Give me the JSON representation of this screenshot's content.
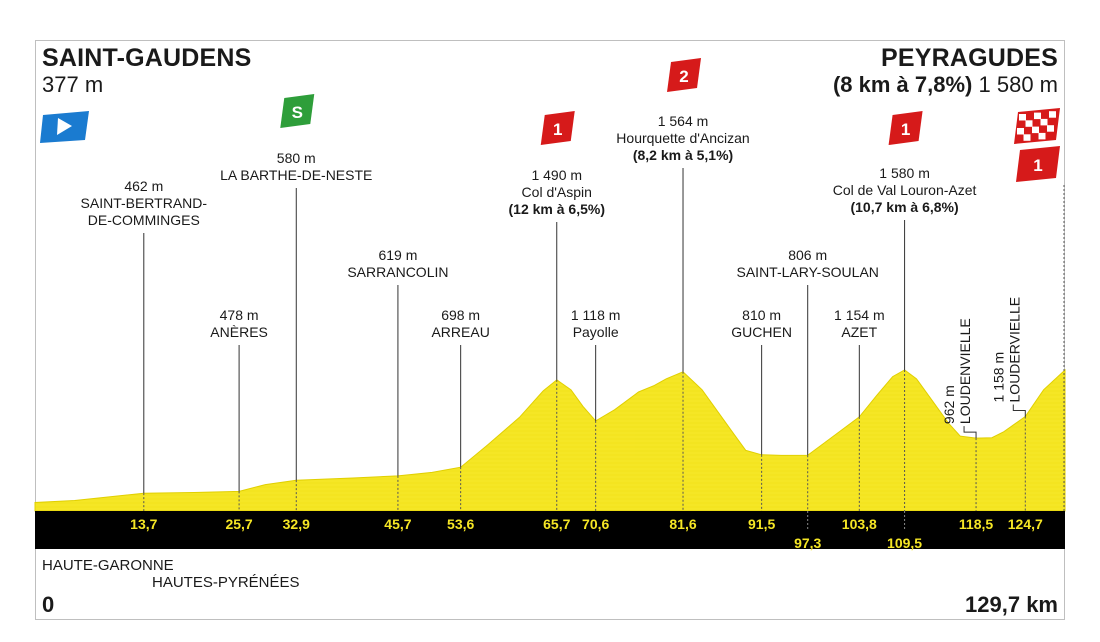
{
  "start": {
    "name": "SAINT-GAUDENS",
    "altitude": "377 m",
    "km": "0"
  },
  "finish": {
    "name": "PEYRAGUDES",
    "climb": "(8 km à 7,8%)",
    "altitude": "1 580 m",
    "km": "129,7 km"
  },
  "departments": [
    "HAUTE-GARONNE",
    "HAUTES-PYRÉNÉES"
  ],
  "colors": {
    "profile": "#f5e625",
    "profile_edge": "#e0cf00",
    "bar": "#000000",
    "km_text": "#f5e625",
    "sprint": "#2e9e3a",
    "climb": "#d61a1a",
    "start_flag": "#1a7bd0"
  },
  "profile_points": [
    {
      "km": 0,
      "alt": 377
    },
    {
      "km": 5,
      "alt": 395
    },
    {
      "km": 13.7,
      "alt": 462
    },
    {
      "km": 20,
      "alt": 468
    },
    {
      "km": 25.7,
      "alt": 478
    },
    {
      "km": 29,
      "alt": 540
    },
    {
      "km": 32.9,
      "alt": 580
    },
    {
      "km": 40,
      "alt": 600
    },
    {
      "km": 45.7,
      "alt": 619
    },
    {
      "km": 50,
      "alt": 650
    },
    {
      "km": 53.6,
      "alt": 698
    },
    {
      "km": 57,
      "alt": 900
    },
    {
      "km": 61,
      "alt": 1150
    },
    {
      "km": 64,
      "alt": 1390
    },
    {
      "km": 65.7,
      "alt": 1490
    },
    {
      "km": 67.5,
      "alt": 1400
    },
    {
      "km": 69,
      "alt": 1250
    },
    {
      "km": 70.6,
      "alt": 1118
    },
    {
      "km": 73,
      "alt": 1220
    },
    {
      "km": 76,
      "alt": 1380
    },
    {
      "km": 78,
      "alt": 1440
    },
    {
      "km": 79.5,
      "alt": 1500
    },
    {
      "km": 81.6,
      "alt": 1564
    },
    {
      "km": 84,
      "alt": 1400
    },
    {
      "km": 86,
      "alt": 1200
    },
    {
      "km": 88,
      "alt": 1000
    },
    {
      "km": 89.5,
      "alt": 850
    },
    {
      "km": 91.5,
      "alt": 810
    },
    {
      "km": 94,
      "alt": 805
    },
    {
      "km": 97.3,
      "alt": 806
    },
    {
      "km": 100,
      "alt": 950
    },
    {
      "km": 103.8,
      "alt": 1154
    },
    {
      "km": 106,
      "alt": 1350
    },
    {
      "km": 108,
      "alt": 1520
    },
    {
      "km": 109.5,
      "alt": 1580
    },
    {
      "km": 111,
      "alt": 1500
    },
    {
      "km": 113,
      "alt": 1300
    },
    {
      "km": 115,
      "alt": 1100
    },
    {
      "km": 116.5,
      "alt": 980
    },
    {
      "km": 118.5,
      "alt": 962
    },
    {
      "km": 120.5,
      "alt": 965
    },
    {
      "km": 122,
      "alt": 1020
    },
    {
      "km": 124.7,
      "alt": 1158
    },
    {
      "km": 127,
      "alt": 1400
    },
    {
      "km": 129.7,
      "alt": 1580
    }
  ],
  "km_markers": [
    {
      "km": 13.7,
      "label": "13,7",
      "row": 1
    },
    {
      "km": 25.7,
      "label": "25,7",
      "row": 1
    },
    {
      "km": 32.9,
      "label": "32,9",
      "row": 1
    },
    {
      "km": 45.7,
      "label": "45,7",
      "row": 1
    },
    {
      "km": 53.6,
      "label": "53,6",
      "row": 1
    },
    {
      "km": 65.7,
      "label": "65,7",
      "row": 1
    },
    {
      "km": 70.6,
      "label": "70,6",
      "row": 1
    },
    {
      "km": 81.6,
      "label": "81,6",
      "row": 1
    },
    {
      "km": 91.5,
      "label": "91,5",
      "row": 1
    },
    {
      "km": 97.3,
      "label": "97,3",
      "row": 2
    },
    {
      "km": 103.8,
      "label": "103,8",
      "row": 1
    },
    {
      "km": 109.5,
      "label": "109,5",
      "row": 2
    },
    {
      "km": 118.5,
      "label": "118,5",
      "row": 1
    },
    {
      "km": 124.7,
      "label": "124,7",
      "row": 1
    }
  ],
  "places": [
    {
      "km": 13.7,
      "alt_label": "462 m",
      "lines": [
        "SAINT-BERTRAND-",
        "DE-COMMINGES"
      ]
    },
    {
      "km": 25.7,
      "alt_label": "478 m",
      "lines": [
        "ANÈRES"
      ]
    },
    {
      "km": 32.9,
      "alt_label": "580 m",
      "lines": [
        "LA BARTHE-DE-NESTE"
      ],
      "marker": "sprint",
      "marker_label": "S"
    },
    {
      "km": 45.7,
      "alt_label": "619 m",
      "lines": [
        "SARRANCOLIN"
      ]
    },
    {
      "km": 53.6,
      "alt_label": "698 m",
      "lines": [
        "ARREAU"
      ]
    },
    {
      "km": 65.7,
      "alt_label": "1 490 m",
      "lines": [
        "Col d'Aspin"
      ],
      "climb": "(12 km à 6,5%)",
      "marker": "climb",
      "marker_label": "1"
    },
    {
      "km": 70.6,
      "alt_label": "1 118 m",
      "lines": [
        "Payolle"
      ]
    },
    {
      "km": 81.6,
      "alt_label": "1 564 m",
      "lines": [
        "Hourquette d'Ancizan"
      ],
      "climb": "(8,2 km à 5,1%)",
      "marker": "climb",
      "marker_label": "2"
    },
    {
      "km": 91.5,
      "alt_label": "810 m",
      "lines": [
        "GUCHEN"
      ]
    },
    {
      "km": 97.3,
      "alt_label": "806 m",
      "lines": [
        "SAINT-LARY-SOULAN"
      ]
    },
    {
      "km": 103.8,
      "alt_label": "1 154 m",
      "lines": [
        "AZET"
      ]
    },
    {
      "km": 109.5,
      "alt_label": "1 580 m",
      "lines": [
        "Col de Val Louron-Azet"
      ],
      "climb": "(10,7 km à 6,8%)",
      "marker": "climb",
      "marker_label": "1"
    },
    {
      "km": 118.5,
      "alt_label": "962 m",
      "lines": [
        "LOUDENVIELLE"
      ],
      "vertical": true
    },
    {
      "km": 124.7,
      "alt_label": "1 158 m",
      "lines": [
        "LOUDERVIELLE"
      ],
      "vertical": true
    }
  ],
  "finish_markers": [
    {
      "type": "checkered"
    },
    {
      "type": "climb",
      "label": "1"
    }
  ]
}
